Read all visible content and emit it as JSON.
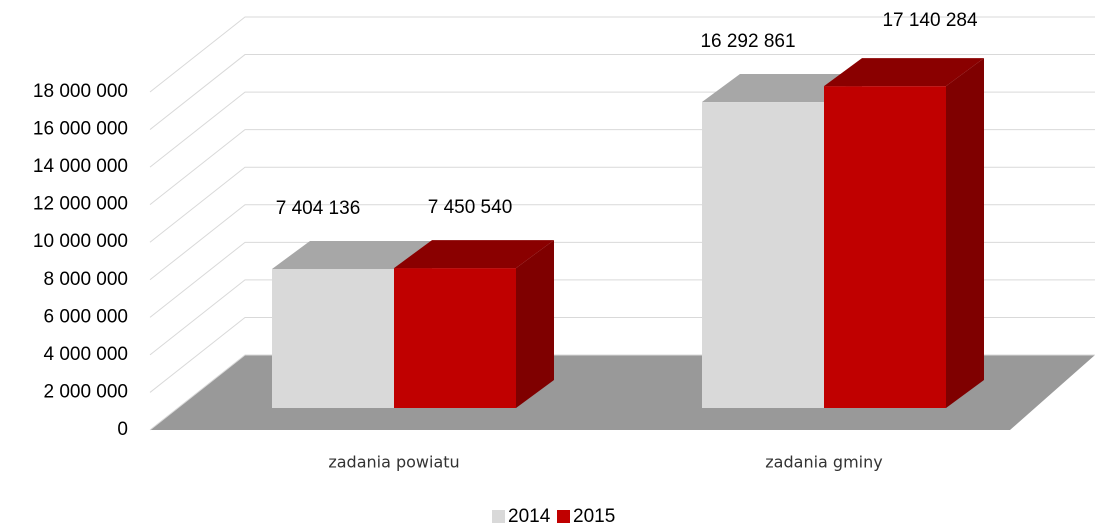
{
  "chart_data": {
    "type": "bar3d",
    "categories": [
      "zadania powiatu",
      "zadania gminy"
    ],
    "series": [
      {
        "name": "2014",
        "color": "#d9d9d9",
        "values": [
          7404136,
          16292861
        ],
        "value_labels": [
          "7 404 136",
          "16 292 861"
        ]
      },
      {
        "name": "2015",
        "color": "#c00000",
        "values": [
          7450540,
          17140284
        ],
        "value_labels": [
          "7 450 540",
          "17 140 284"
        ]
      }
    ],
    "ylim": [
      0,
      18000000
    ],
    "yticks": [
      0,
      {
        "value": 2000000,
        "label": "2 000 000"
      },
      {
        "value": 4000000,
        "label": "4 000 000"
      },
      {
        "value": 6000000,
        "label": "6 000 000"
      },
      {
        "value": 8000000,
        "label": "8 000 000"
      },
      {
        "value": 10000000,
        "label": "10 000 000"
      },
      {
        "value": 12000000,
        "label": "12 000 000"
      },
      {
        "value": 14000000,
        "label": "14 000 000"
      },
      {
        "value": 16000000,
        "label": "16 000 000"
      },
      {
        "value": 18000000,
        "label": "18 000 000"
      }
    ],
    "grid": true,
    "legend": "bottom"
  }
}
